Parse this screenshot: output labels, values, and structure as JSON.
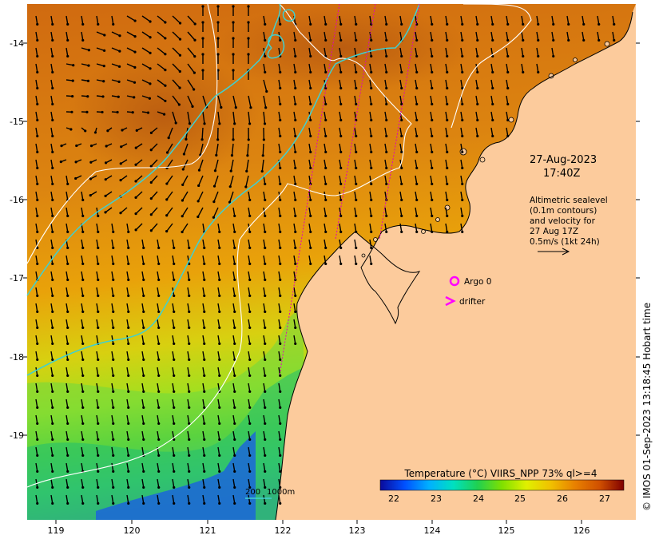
{
  "map": {
    "date_label": "27-Aug-2023",
    "time_label": "17:40Z",
    "altimetry_note": [
      "Altimetric sealevel",
      "(0.1m contours)",
      "and velocity for",
      "27 Aug 17Z",
      "0.5m/s (1kt 24h)"
    ],
    "legend": {
      "argo_label": "Argo 0",
      "drifter_label": "drifter",
      "argo_color": "#ff00ff",
      "drifter_color": "#ff00ff"
    },
    "depth_scale": {
      "label_200": "200",
      "label_1000": "1000m",
      "color": "#40d0d0"
    },
    "colorbar": {
      "title": "Temperature (°C) VIIRS_NPP 73% ql>=4",
      "ticks": [
        "22",
        "23",
        "24",
        "25",
        "26",
        "27"
      ],
      "colors": [
        "#0a0a9a",
        "#0050ff",
        "#00b0ff",
        "#00e0c0",
        "#20d050",
        "#80e000",
        "#e0f000",
        "#f0c000",
        "#e88000",
        "#d05000",
        "#a82000",
        "#800000"
      ]
    },
    "side_credit": "© IMOS 01-Sep-2023 13:18:45 Hobart time",
    "x_ticks": [
      "119",
      "120",
      "121",
      "122",
      "123",
      "124",
      "125",
      "126"
    ],
    "y_ticks": [
      "-14",
      "-15",
      "-16",
      "-17",
      "-18",
      "-19"
    ],
    "colors": {
      "land": "#fccb9c",
      "sea_warm": "#d77812",
      "sea_mid": "#e6a008",
      "sea_cool": "#3cc83c",
      "sea_cold": "#1e78e6",
      "contour": "#ffffff",
      "isobath": "#40d0d0",
      "track": "#e000c0"
    }
  }
}
